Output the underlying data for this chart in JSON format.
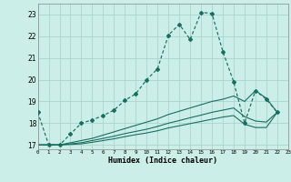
{
  "xlabel": "Humidex (Indice chaleur)",
  "bg_color": "#cceee8",
  "grid_color": "#aad4cc",
  "line_color": "#1a6e60",
  "xlim": [
    0,
    23
  ],
  "ylim": [
    16.8,
    23.5
  ],
  "yticks": [
    17,
    18,
    19,
    20,
    21,
    22,
    23
  ],
  "xticks": [
    0,
    1,
    2,
    3,
    4,
    5,
    6,
    7,
    8,
    9,
    10,
    11,
    12,
    13,
    14,
    15,
    16,
    17,
    18,
    19,
    20,
    21,
    22,
    23
  ],
  "main_y": [
    18.5,
    17.0,
    17.0,
    17.5,
    18.0,
    18.15,
    18.35,
    18.6,
    19.05,
    19.35,
    20.0,
    20.5,
    22.05,
    22.55,
    21.85,
    23.1,
    23.05,
    21.3,
    19.9,
    18.0,
    19.5,
    19.1,
    18.5
  ],
  "line1_y": [
    17.0,
    17.0,
    17.0,
    17.1,
    17.2,
    17.3,
    17.45,
    17.6,
    17.75,
    17.9,
    18.05,
    18.2,
    18.4,
    18.55,
    18.7,
    18.85,
    19.0,
    19.1,
    19.25,
    19.0,
    19.5,
    19.15,
    18.5
  ],
  "line2_y": [
    17.0,
    17.0,
    17.0,
    17.05,
    17.1,
    17.2,
    17.3,
    17.4,
    17.52,
    17.62,
    17.72,
    17.85,
    18.0,
    18.12,
    18.25,
    18.37,
    18.5,
    18.6,
    18.7,
    18.3,
    18.1,
    18.05,
    18.5
  ],
  "line3_y": [
    17.0,
    17.0,
    17.0,
    17.02,
    17.05,
    17.12,
    17.2,
    17.28,
    17.38,
    17.47,
    17.55,
    17.65,
    17.78,
    17.88,
    17.98,
    18.08,
    18.18,
    18.28,
    18.35,
    17.95,
    17.8,
    17.8,
    18.5
  ]
}
